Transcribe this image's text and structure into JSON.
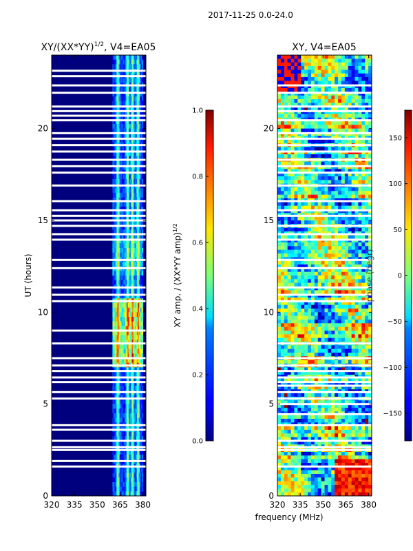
{
  "suptitle": "2017-11-25 0.0-24.0",
  "shared_xlabel": "frequency (MHz)",
  "colors": {
    "no_data": "#ffffff",
    "background_low": "#00007f"
  },
  "chart_data": [
    {
      "type": "heatmap",
      "title": "XY/(XX*YY)",
      "title_superscript": "1/2",
      "title_suffix": ", V4=EA05",
      "xlabel": "",
      "ylabel": "UT (hours)",
      "xlim": [
        320,
        382
      ],
      "ylim": [
        0,
        24
      ],
      "xticks": [
        320,
        335,
        350,
        365,
        380
      ],
      "yticks": [
        0,
        5,
        10,
        15,
        20
      ],
      "colormap": "jet",
      "colorbar": {
        "label": "XY amp. / (XX*YY amp)",
        "label_superscript": "1/2",
        "vmin": 0.0,
        "vmax": 1.0,
        "ticks": [
          0.0,
          0.2,
          0.4,
          0.6,
          0.8,
          1.0
        ],
        "tick_labels": [
          "0.0",
          "0.2",
          "0.4",
          "0.6",
          "0.8",
          "1.0"
        ]
      },
      "signal_band_mhz": [
        360,
        380
      ],
      "gap_hours": [
        1.6,
        1.9,
        2.5,
        2.65,
        3.0,
        3.6,
        3.85,
        5.3,
        5.65,
        6.2,
        6.45,
        6.8,
        7.1,
        7.5,
        8.3,
        9.0,
        10.6,
        10.95,
        11.35,
        12.4,
        12.85,
        13.95,
        14.25,
        14.7,
        15.0,
        15.25,
        15.55,
        16.05,
        16.9,
        17.6,
        17.95,
        18.3,
        18.75,
        19.1,
        19.45,
        19.75,
        20.45,
        20.7,
        20.95,
        21.2,
        21.95,
        22.35,
        22.85,
        23.15
      ]
    },
    {
      "type": "heatmap",
      "title": "XY, V4=EA05",
      "xlabel": "frequency (MHz)",
      "ylabel": "",
      "xlim": [
        320,
        382
      ],
      "ylim": [
        0,
        24
      ],
      "xticks": [
        320,
        335,
        350,
        365,
        380
      ],
      "yticks": [
        0,
        5,
        10,
        15,
        20
      ],
      "colormap": "jet",
      "colorbar": {
        "label": "phase (degr)",
        "vmin": -180,
        "vmax": 180,
        "ticks": [
          -150,
          -100,
          -50,
          0,
          50,
          100,
          150
        ],
        "tick_labels": [
          "−150",
          "−100",
          "−50",
          "0",
          "50",
          "100",
          "150"
        ]
      },
      "gap_hours": [
        1.6,
        2.5,
        2.65,
        3.0,
        3.85,
        4.45,
        5.0,
        5.3,
        5.65,
        6.0,
        6.2,
        6.45,
        6.8,
        7.1,
        7.5,
        8.3,
        10.6,
        10.95,
        11.35,
        12.4,
        12.85,
        13.95,
        14.25,
        14.7,
        15.25,
        15.55,
        16.05,
        16.9,
        17.6,
        17.95,
        18.3,
        18.75,
        19.1,
        19.45,
        19.75,
        20.45,
        20.95,
        21.2,
        21.95,
        22.35
      ]
    }
  ]
}
